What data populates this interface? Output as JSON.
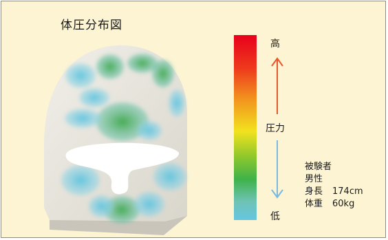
{
  "title": "体圧分布図",
  "scale": {
    "high_label": "高",
    "mid_label": "圧力",
    "low_label": "低",
    "gradient_colors": [
      "#e8001c",
      "#ee5a1a",
      "#f29a1e",
      "#f2e21e",
      "#9ccc2a",
      "#3fb24a",
      "#7cc9c4",
      "#66c6e0"
    ],
    "up_arrow_color": "#e8562a",
    "down_arrow_color": "#7ab8e0"
  },
  "subject": {
    "heading": "被験者",
    "gender": "男性",
    "height_label": "身長",
    "height_value": "174cm",
    "weight_label": "体重",
    "weight_value": "60kg"
  },
  "heatmap_colors": {
    "low": "#63c5dd",
    "mid": "#5fbe7a",
    "high": "#3ea84a"
  }
}
